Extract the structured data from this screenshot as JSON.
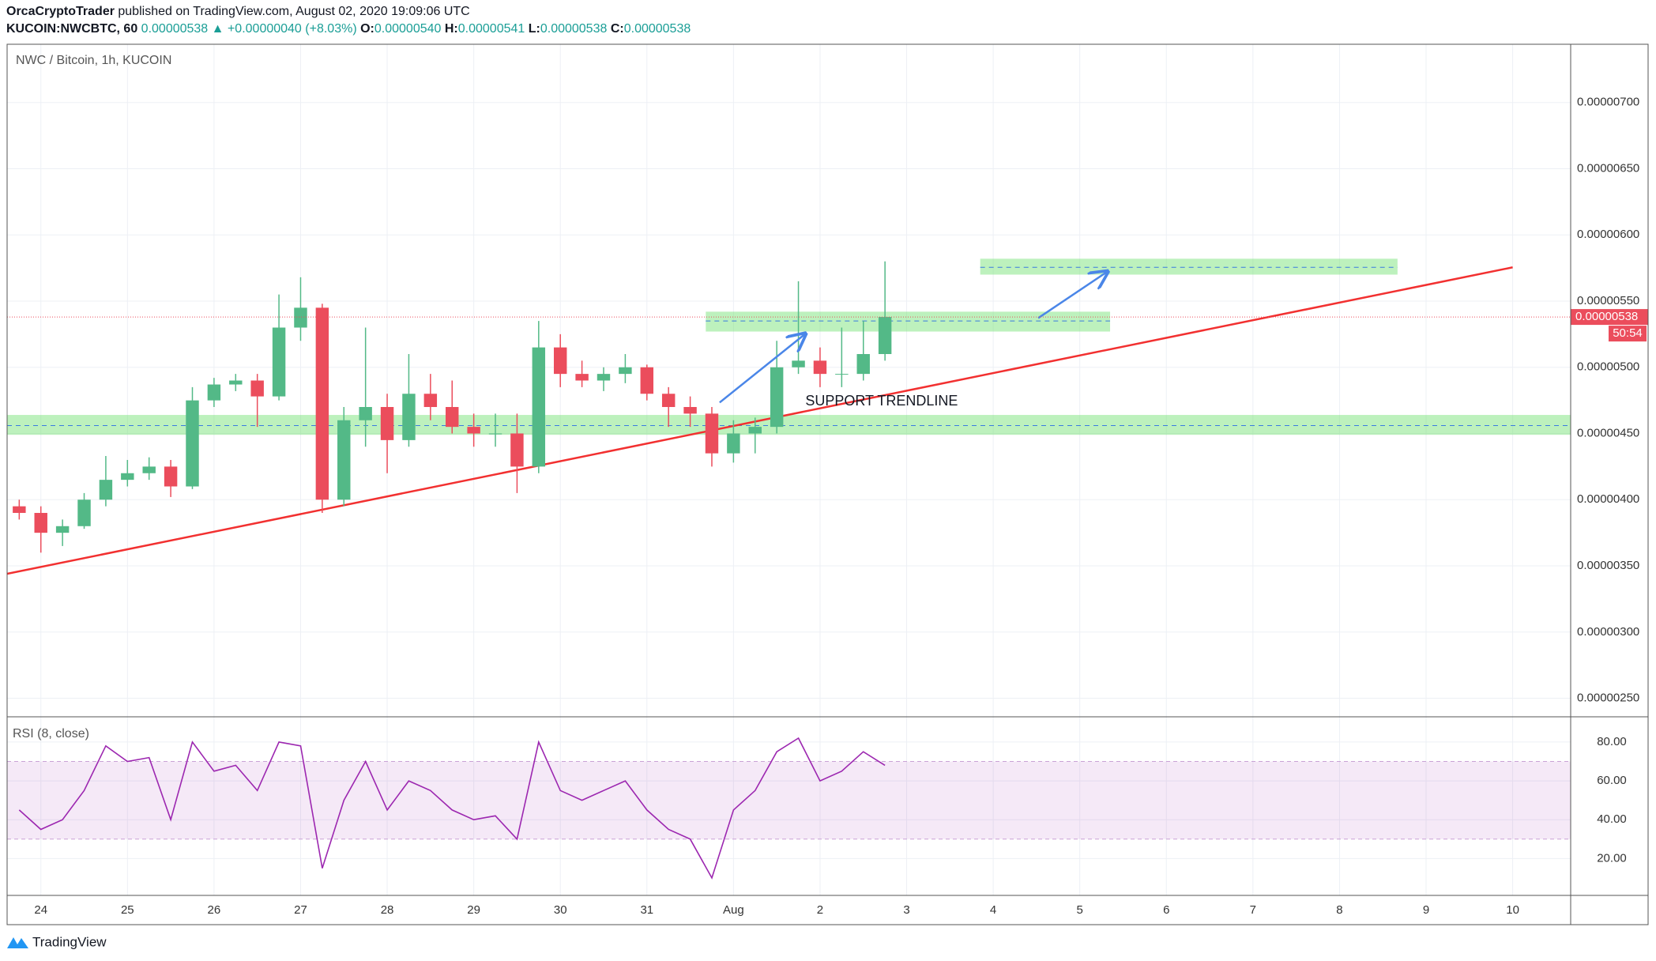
{
  "header": {
    "author": "OrcaCryptoTrader",
    "published": " published on TradingView.com, August 02, 2020 19:09:06 UTC",
    "symbol": "KUCOIN:NWCBTC, 60",
    "last": "0.00000538",
    "arrow": "▲",
    "change": "+0.00000040 (+8.03%)",
    "o_label": "O:",
    "open": "0.00000540",
    "h_label": "H:",
    "high": "0.00000541",
    "l_label": "L:",
    "low": "0.00000538",
    "c_label": "C:",
    "close": "0.00000538"
  },
  "chart_data": [
    {
      "type": "candlestick",
      "title": "NWC / Bitcoin, 1h, KUCOIN",
      "x": [
        23.75,
        24,
        24.25,
        24.5,
        24.75,
        25,
        25.25,
        25.5,
        25.75,
        26,
        26.25,
        26.5,
        26.75,
        27,
        27.25,
        27.5,
        27.75,
        28,
        28.25,
        28.5,
        28.75,
        29,
        29.25,
        29.5,
        29.75,
        30,
        30.25,
        30.5,
        30.75,
        31,
        31.25,
        31.5,
        31.75,
        32,
        32.25,
        32.5,
        32.75,
        33,
        33.25,
        33.5,
        33.75
      ],
      "open": [
        3.95e-06,
        3.9e-06,
        3.75e-06,
        3.8e-06,
        4e-06,
        4.15e-06,
        4.2e-06,
        4.25e-06,
        4.1e-06,
        4.75e-06,
        4.87e-06,
        4.9e-06,
        4.78e-06,
        5.3e-06,
        5.45e-06,
        4e-06,
        4.6e-06,
        4.7e-06,
        4.45e-06,
        4.8e-06,
        4.7e-06,
        4.55e-06,
        4.5e-06,
        4.5e-06,
        4.25e-06,
        5.15e-06,
        4.95e-06,
        4.9e-06,
        4.95e-06,
        5e-06,
        4.8e-06,
        4.7e-06,
        4.65e-06,
        4.35e-06,
        4.5e-06,
        4.55e-06,
        5e-06,
        5.05e-06,
        4.95e-06,
        4.95e-06,
        5.1e-06
      ],
      "high": [
        4e-06,
        3.95e-06,
        3.85e-06,
        4.05e-06,
        4.33e-06,
        4.3e-06,
        4.32e-06,
        4.3e-06,
        4.85e-06,
        4.92e-06,
        4.95e-06,
        4.95e-06,
        5.55e-06,
        5.68e-06,
        5.48e-06,
        4.7e-06,
        5.3e-06,
        4.8e-06,
        5.1e-06,
        4.95e-06,
        4.9e-06,
        4.65e-06,
        4.65e-06,
        4.65e-06,
        5.35e-06,
        5.25e-06,
        5.05e-06,
        5e-06,
        5.1e-06,
        5.02e-06,
        4.85e-06,
        4.78e-06,
        4.7e-06,
        4.6e-06,
        4.62e-06,
        5.2e-06,
        5.65e-06,
        5.15e-06,
        5.3e-06,
        5.35e-06,
        5.8e-06
      ],
      "low": [
        3.85e-06,
        3.6e-06,
        3.65e-06,
        3.78e-06,
        3.95e-06,
        4.1e-06,
        4.15e-06,
        4.02e-06,
        4.08e-06,
        4.7e-06,
        4.82e-06,
        4.55e-06,
        4.75e-06,
        5.2e-06,
        3.9e-06,
        3.95e-06,
        4.4e-06,
        4.2e-06,
        4.4e-06,
        4.6e-06,
        4.5e-06,
        4.4e-06,
        4.4e-06,
        4.05e-06,
        4.2e-06,
        4.85e-06,
        4.85e-06,
        4.82e-06,
        4.88e-06,
        4.75e-06,
        4.55e-06,
        4.55e-06,
        4.25e-06,
        4.28e-06,
        4.35e-06,
        4.5e-06,
        4.95e-06,
        4.85e-06,
        4.85e-06,
        4.9e-06,
        5.05e-06
      ],
      "close": [
        3.9e-06,
        3.75e-06,
        3.8e-06,
        4e-06,
        4.15e-06,
        4.2e-06,
        4.25e-06,
        4.1e-06,
        4.75e-06,
        4.87e-06,
        4.9e-06,
        4.78e-06,
        5.3e-06,
        5.45e-06,
        4e-06,
        4.6e-06,
        4.7e-06,
        4.45e-06,
        4.8e-06,
        4.7e-06,
        4.55e-06,
        4.5e-06,
        4.5e-06,
        4.25e-06,
        5.15e-06,
        4.95e-06,
        4.9e-06,
        4.95e-06,
        5e-06,
        4.8e-06,
        4.7e-06,
        4.65e-06,
        4.35e-06,
        4.5e-06,
        4.55e-06,
        5e-06,
        5.05e-06,
        4.95e-06,
        4.95e-06,
        5.1e-06,
        5.38e-06
      ],
      "up_color": "#53b987",
      "down_color": "#eb4d5c",
      "xlim": [
        23.61,
        41.67
      ],
      "xticks": [
        24,
        25,
        26,
        27,
        28,
        29,
        30,
        31,
        {
          "value": 32,
          "label": "Aug"
        },
        {
          "value": 33,
          "label": "2"
        },
        {
          "value": 34,
          "label": "3"
        },
        {
          "value": 35,
          "label": "4"
        },
        {
          "value": 36,
          "label": "5"
        },
        {
          "value": 37,
          "label": "6"
        },
        {
          "value": 38,
          "label": "7"
        },
        {
          "value": 39,
          "label": "8"
        },
        {
          "value": 40,
          "label": "9"
        },
        {
          "value": 41,
          "label": "10"
        }
      ],
      "ylim": [
        2.36e-06,
        7.44e-06
      ],
      "yticks": [
        {
          "value": 2.5e-06,
          "label": "0.00000250"
        },
        {
          "value": 3e-06,
          "label": "0.00000300"
        },
        {
          "value": 3.5e-06,
          "label": "0.00000350"
        },
        {
          "value": 4e-06,
          "label": "0.00000400"
        },
        {
          "value": 4.5e-06,
          "label": "0.00000450"
        },
        {
          "value": 5e-06,
          "label": "0.00000500"
        },
        {
          "value": 5.5e-06,
          "label": "0.00000550"
        },
        {
          "value": 6e-06,
          "label": "0.00000600"
        },
        {
          "value": 6.5e-06,
          "label": "0.00000650"
        },
        {
          "value": 7e-06,
          "label": "0.00000700"
        }
      ],
      "grid": true,
      "last_price": 5.38e-06,
      "countdown": "50:54",
      "zones": [
        {
          "x": [
            23.61,
            41.67
          ],
          "y": [
            4.49e-06,
            4.64e-06
          ],
          "mid": 4.56e-06
        },
        {
          "x": [
            31.68,
            36.35
          ],
          "y": [
            5.27e-06,
            5.42e-06
          ],
          "mid": 5.35e-06
        },
        {
          "x": [
            34.85,
            39.67
          ],
          "y": [
            5.7e-06,
            5.82e-06
          ],
          "mid": 5.755e-06
        }
      ],
      "trendline": {
        "x": [
          23.61,
          41
        ],
        "y": [
          3.44e-06,
          5.755e-06
        ],
        "color": "#f23030"
      },
      "arrows": [
        {
          "x": [
            31.84,
            32.83
          ],
          "y": [
            4.734e-06,
            5.253e-06
          ]
        },
        {
          "x": [
            35.52,
            36.32
          ],
          "y": [
            5.372e-06,
            5.723e-06
          ]
        }
      ],
      "arrow_color": "#4a86e8",
      "annotation": {
        "text": "SUPPORT TRENDLINE",
        "x": 32.83,
        "y": 4.74e-06
      }
    },
    {
      "type": "line",
      "title": "RSI (8, close)",
      "x": [
        23.75,
        24,
        24.25,
        24.5,
        24.75,
        25,
        25.25,
        25.5,
        25.75,
        26,
        26.25,
        26.5,
        26.75,
        27,
        27.25,
        27.5,
        27.75,
        28,
        28.25,
        28.5,
        28.75,
        29,
        29.25,
        29.5,
        29.75,
        30,
        30.25,
        30.5,
        30.75,
        31,
        31.25,
        31.5,
        31.75,
        32,
        32.25,
        32.5,
        32.75,
        33,
        33.25,
        33.5,
        33.75
      ],
      "values": [
        45,
        35,
        40,
        55,
        78,
        70,
        72,
        40,
        80,
        65,
        68,
        55,
        80,
        78,
        15,
        50,
        70,
        45,
        60,
        55,
        45,
        40,
        42,
        30,
        80,
        55,
        50,
        55,
        60,
        45,
        35,
        30,
        10,
        45,
        55,
        75,
        82,
        60,
        65,
        75,
        68
      ],
      "color": "#9c27b0",
      "ylim": [
        1,
        93
      ],
      "yticks": [
        {
          "value": 20,
          "label": "20.00"
        },
        {
          "value": 40,
          "label": "40.00"
        },
        {
          "value": 60,
          "label": "60.00"
        },
        {
          "value": 80,
          "label": "80.00"
        }
      ],
      "band": [
        30,
        70
      ]
    }
  ],
  "footer": {
    "brand": "TradingView"
  }
}
